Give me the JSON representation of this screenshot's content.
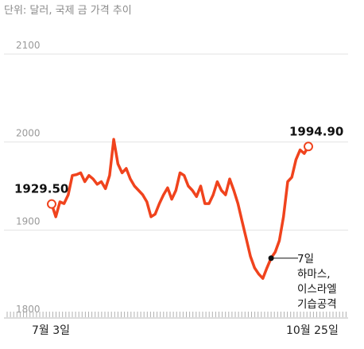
{
  "chart_data": {
    "type": "line",
    "unit_note": "단위: 달러, 국제 금 가격 추이",
    "y_ticks": [
      2100,
      2000,
      1900,
      1800
    ],
    "y_range": [
      1800,
      2100
    ],
    "x_ticks": [
      "7월 3일",
      "10월 25일"
    ],
    "color": "#f0431d",
    "series": [
      {
        "values": [
          1929.5,
          1915,
          1932,
          1930,
          1940,
          1962,
          1963,
          1965,
          1955,
          1962,
          1958,
          1952,
          1955,
          1947,
          1962,
          2003,
          1975,
          1965,
          1970,
          1958,
          1950,
          1945,
          1940,
          1932,
          1915,
          1918,
          1930,
          1940,
          1948,
          1935,
          1945,
          1965,
          1962,
          1950,
          1945,
          1938,
          1950,
          1930,
          1930,
          1940,
          1955,
          1945,
          1940,
          1958,
          1945,
          1930,
          1910,
          1890,
          1870,
          1857,
          1850,
          1845,
          1857,
          1868,
          1875,
          1888,
          1915,
          1955,
          1960,
          1980,
          1991,
          1987,
          1994.9
        ]
      }
    ],
    "point_labels": [
      {
        "text": "1929.50",
        "index": 0
      },
      {
        "text": "1994.90",
        "index": 62
      }
    ],
    "annotation": {
      "index": 53,
      "lines": [
        "7일",
        "하마스,",
        "이스라엘",
        "기습공격"
      ]
    }
  }
}
